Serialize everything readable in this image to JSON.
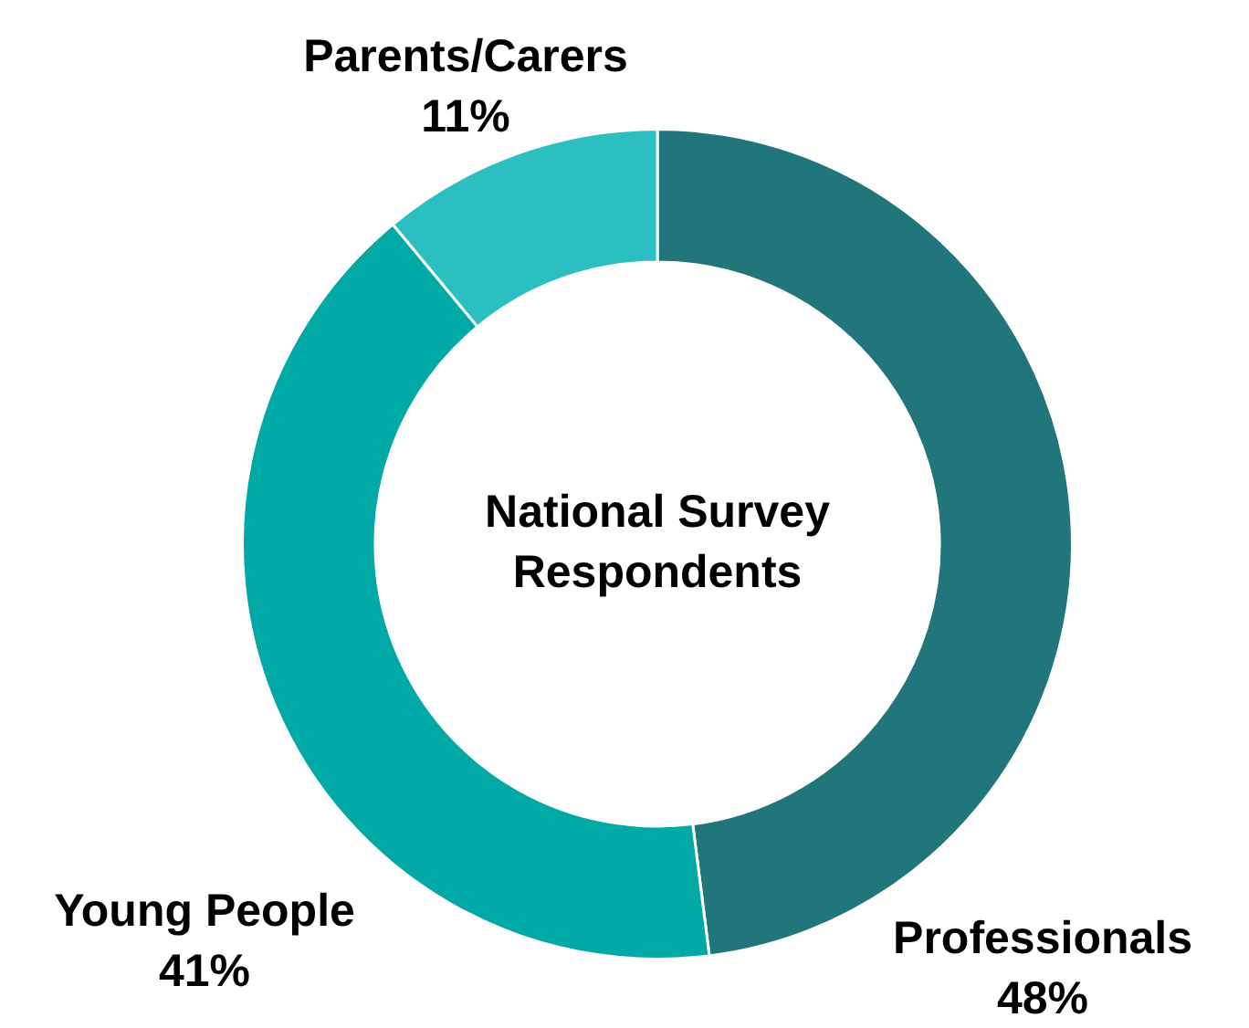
{
  "chart_data": {
    "type": "donut",
    "title": "National Survey Respondents",
    "categories": [
      "Professionals",
      "Young People",
      "Parents/Carers"
    ],
    "values": [
      48,
      41,
      11
    ],
    "colors": [
      "#20767a",
      "#00a9a5",
      "#2bbfc1"
    ],
    "value_labels": [
      "48%",
      "41%",
      "11%"
    ],
    "legend": false
  }
}
